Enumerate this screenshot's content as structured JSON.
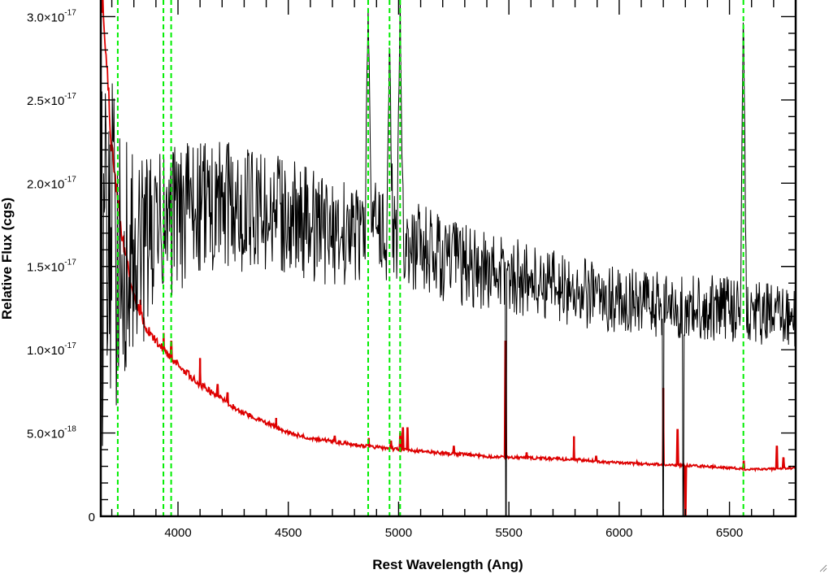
{
  "chart_data": {
    "type": "line",
    "title": "",
    "xlabel": "Rest Wavelength (Ang)",
    "ylabel": "Relative Flux (cgs)",
    "xlim": [
      3650,
      6800
    ],
    "ylim": [
      0,
      3.1e-17
    ],
    "x_ticks": [
      4000,
      4500,
      5000,
      5500,
      6000,
      6500
    ],
    "x_tick_labels": [
      "4000",
      "4500",
      "5000",
      "5500",
      "6000",
      "6500"
    ],
    "y_ticks": [
      0,
      5e-18,
      1e-17,
      1.5e-17,
      2e-17,
      2.5e-17,
      3e-17
    ],
    "y_tick_labels": [
      {
        "mantissa": "0",
        "exponent": ""
      },
      {
        "mantissa": "5.0×10",
        "exponent": "-18"
      },
      {
        "mantissa": "1.0×10",
        "exponent": "-17"
      },
      {
        "mantissa": "1.5×10",
        "exponent": "-17"
      },
      {
        "mantissa": "2.0×10",
        "exponent": "-17"
      },
      {
        "mantissa": "2.5×10",
        "exponent": "-17"
      },
      {
        "mantissa": "3.0×10",
        "exponent": "-17"
      }
    ],
    "grid": false,
    "series": [
      {
        "role": "spectrum",
        "color": "#000000",
        "approx_continuum": [
          [
            3660,
            1.6e-17
          ],
          [
            3800,
            1.55e-17
          ],
          [
            3950,
            1.75e-17
          ],
          [
            4100,
            1.85e-17
          ],
          [
            4300,
            1.85e-17
          ],
          [
            4500,
            1.8e-17
          ],
          [
            4700,
            1.7e-17
          ],
          [
            4900,
            1.72e-17
          ],
          [
            5100,
            1.6e-17
          ],
          [
            5300,
            1.5e-17
          ],
          [
            5500,
            1.45e-17
          ],
          [
            5700,
            1.38e-17
          ],
          [
            5900,
            1.32e-17
          ],
          [
            6100,
            1.28e-17
          ],
          [
            6300,
            1.25e-17
          ],
          [
            6500,
            1.25e-17
          ],
          [
            6700,
            1.2e-17
          ],
          [
            6800,
            1.18e-17
          ]
        ],
        "approx_noise_amplitude": [
          [
            3660,
            1.2e-17
          ],
          [
            3800,
            6e-18
          ],
          [
            4000,
            4.5e-18
          ],
          [
            4300,
            3.8e-18
          ],
          [
            4700,
            3.2e-18
          ],
          [
            5000,
            3e-18
          ],
          [
            5500,
            2.3e-18
          ],
          [
            6000,
            2e-18
          ],
          [
            6800,
            2e-18
          ]
        ],
        "emission_peaks": [
          {
            "x": 4862,
            "y": 3.1e-17
          },
          {
            "x": 4959,
            "y": 2.9e-17
          },
          {
            "x": 5007,
            "y": 3.1e-17
          },
          {
            "x": 6563,
            "y": 3.1e-17
          }
        ],
        "dips": [
          {
            "x": 5486,
            "y": 0
          },
          {
            "x": 6200,
            "y": 0
          },
          {
            "x": 6290,
            "y": 0
          }
        ]
      },
      {
        "role": "error",
        "color": "#dd0000",
        "values": [
          [
            3660,
            3.1e-17
          ],
          [
            3700,
            2.2e-17
          ],
          [
            3750,
            1.65e-17
          ],
          [
            3800,
            1.32e-17
          ],
          [
            3850,
            1.15e-17
          ],
          [
            3900,
            1.05e-17
          ],
          [
            3950,
            9.8e-18
          ],
          [
            4000,
            9.1e-18
          ],
          [
            4100,
            7.9e-18
          ],
          [
            4200,
            7e-18
          ],
          [
            4300,
            6.2e-18
          ],
          [
            4400,
            5.6e-18
          ],
          [
            4500,
            5e-18
          ],
          [
            4600,
            4.7e-18
          ],
          [
            4700,
            4.5e-18
          ],
          [
            4800,
            4.3e-18
          ],
          [
            5000,
            4e-18
          ],
          [
            5200,
            3.8e-18
          ],
          [
            5400,
            3.6e-18
          ],
          [
            5600,
            3.5e-18
          ],
          [
            5800,
            3.4e-18
          ],
          [
            6000,
            3.2e-18
          ],
          [
            6200,
            3.1e-18
          ],
          [
            6400,
            3e-18
          ],
          [
            6600,
            2.8e-18
          ],
          [
            6800,
            2.9e-18
          ]
        ],
        "spikes": [
          {
            "x": 3830,
            "y": 1.3e-17
          },
          {
            "x": 3935,
            "y": 1.1e-17
          },
          {
            "x": 3970,
            "y": 1.05e-17
          },
          {
            "x": 4100,
            "y": 9.5e-18
          },
          {
            "x": 4180,
            "y": 7.9e-18
          },
          {
            "x": 4225,
            "y": 7.4e-18
          },
          {
            "x": 4445,
            "y": 5.9e-18
          },
          {
            "x": 4710,
            "y": 4.8e-18
          },
          {
            "x": 4865,
            "y": 4.7e-18
          },
          {
            "x": 4965,
            "y": 4.5e-18
          },
          {
            "x": 5007,
            "y": 5e-18
          },
          {
            "x": 5020,
            "y": 5.3e-18
          },
          {
            "x": 5040,
            "y": 5.3e-18
          },
          {
            "x": 5250,
            "y": 4.2e-18
          },
          {
            "x": 5485,
            "y": 1.05e-17
          },
          {
            "x": 5580,
            "y": 3.8e-18
          },
          {
            "x": 5795,
            "y": 4.8e-18
          },
          {
            "x": 5895,
            "y": 3.6e-18
          },
          {
            "x": 6080,
            "y": 3.3e-18
          },
          {
            "x": 6170,
            "y": 3.2e-18
          },
          {
            "x": 6200,
            "y": 7.7e-18
          },
          {
            "x": 6265,
            "y": 5.2e-18
          },
          {
            "x": 6300,
            "y": 0
          },
          {
            "x": 6565,
            "y": 3.3e-18
          },
          {
            "x": 6715,
            "y": 4.2e-18
          },
          {
            "x": 6745,
            "y": 3.5e-18
          }
        ]
      }
    ],
    "reference_lines": {
      "color": "#00ee00",
      "style": "dashed",
      "x": [
        3727,
        3934,
        3969,
        4862,
        4959,
        5007,
        6563
      ]
    }
  }
}
